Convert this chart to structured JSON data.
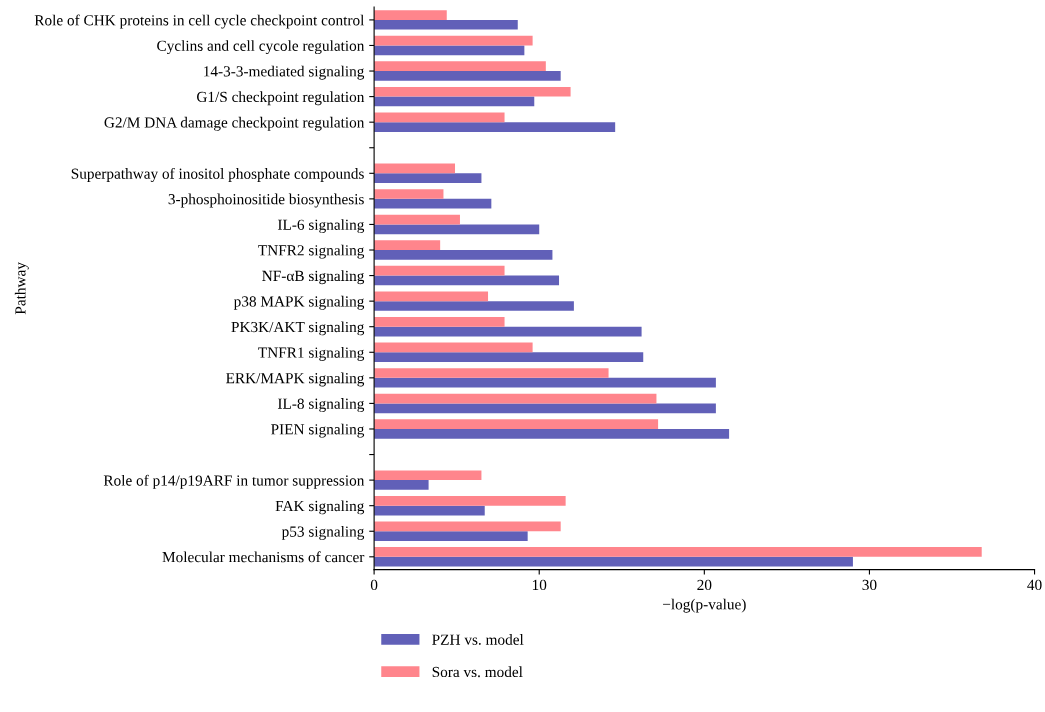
{
  "chart_data": {
    "type": "bar",
    "orientation": "horizontal",
    "xlabel": "−log(p-value)",
    "ylabel": "Pathway",
    "categories": [
      "Role of CHK proteins in cell cycle checkpoint control",
      "Cyclins and cell cycole regulation",
      "14-3-3-mediated signaling",
      "G1/S checkpoint regulation",
      "G2/M DNA damage checkpoint regulation",
      null,
      "Superpathway of inositol phosphate compounds",
      "3-phosphoinositide biosynthesis",
      "IL-6 signaling",
      "TNFR2 signaling",
      "NF-αB signaling",
      "p38 MAPK signaling",
      "PK3K/AKT signaling",
      "TNFR1 signaling",
      "ERK/MAPK signaling",
      "IL-8 signaling",
      "PIEN signaling",
      null,
      "Role of p14/p19ARF in tumor suppression",
      "FAK signaling",
      "p53 signaling",
      "Molecular mechanisms of cancer"
    ],
    "series": [
      {
        "name": "PZH vs. model",
        "color": "#6160b8",
        "values": [
          8.7,
          9.1,
          11.3,
          9.7,
          14.6,
          null,
          6.5,
          7.1,
          10.0,
          10.8,
          11.2,
          12.1,
          16.2,
          16.3,
          20.7,
          20.7,
          21.5,
          null,
          3.3,
          6.7,
          9.3,
          29.0
        ]
      },
      {
        "name": "Sora vs. model",
        "color": "#ff858c",
        "values": [
          4.4,
          9.6,
          10.4,
          11.9,
          7.9,
          null,
          4.9,
          4.2,
          5.2,
          4.0,
          7.9,
          6.9,
          7.9,
          9.6,
          14.2,
          17.1,
          17.2,
          null,
          6.5,
          11.6,
          11.3,
          36.8
        ]
      }
    ],
    "xlim": [
      0,
      40
    ],
    "xticks": [
      0,
      10,
      20,
      30,
      40
    ],
    "grid": false,
    "legend": "bottom left"
  }
}
